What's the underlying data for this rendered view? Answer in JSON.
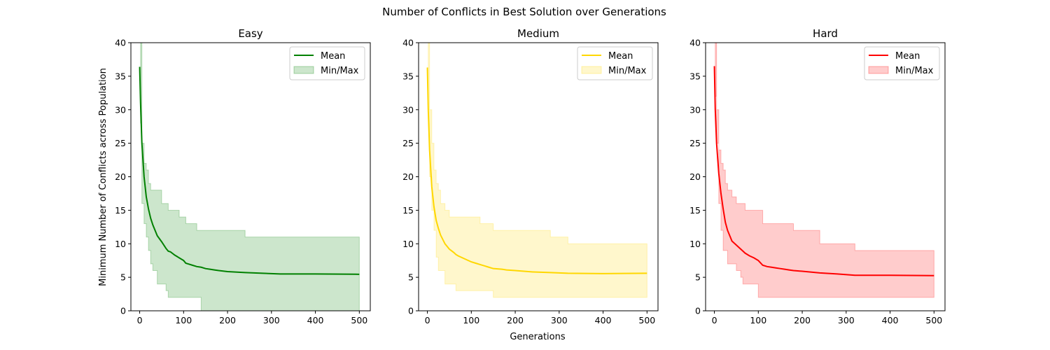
{
  "figure": {
    "suptitle": "Number of Conflicts in Best Solution over Generations",
    "xlabel": "Generations",
    "ylabel": "Minimum Number of Conflicts across Population"
  },
  "chart_data": [
    {
      "type": "line",
      "title": "Easy",
      "color": "#008000",
      "x": [
        0,
        2,
        5,
        10,
        15,
        20,
        25,
        30,
        40,
        50,
        60,
        65,
        70,
        80,
        90,
        100,
        105,
        110,
        120,
        130,
        140,
        150,
        160,
        170,
        180,
        200,
        240,
        280,
        320,
        400,
        500
      ],
      "series": [
        {
          "name": "Mean",
          "values": [
            36.4,
            31,
            25,
            20,
            17,
            15.2,
            13.8,
            12.8,
            11.2,
            10.3,
            9.3,
            8.9,
            8.8,
            8.3,
            7.9,
            7.5,
            7.1,
            7.0,
            6.8,
            6.6,
            6.5,
            6.3,
            6.2,
            6.1,
            6.0,
            5.85,
            5.7,
            5.6,
            5.5,
            5.5,
            5.45
          ]
        },
        {
          "name": "Min/Max",
          "min": [
            40,
            28,
            16,
            13,
            11,
            9,
            7,
            6,
            4,
            4,
            3,
            2,
            2,
            2,
            2,
            2,
            2,
            2,
            2,
            2,
            0,
            0,
            0,
            0,
            0,
            0,
            0,
            0,
            0,
            0,
            0
          ],
          "max": [
            40,
            40,
            25,
            22,
            21,
            19,
            18,
            18,
            18,
            16,
            16,
            15,
            15,
            15,
            14,
            14,
            13,
            13,
            13,
            12,
            12,
            12,
            12,
            12,
            12,
            12,
            11,
            11,
            11,
            11,
            11
          ]
        }
      ],
      "xlim": [
        -20,
        525
      ],
      "ylim": [
        0,
        40
      ],
      "xticks": [
        0,
        100,
        200,
        300,
        400,
        500
      ],
      "yticks": [
        0,
        5,
        10,
        15,
        20,
        25,
        30,
        35,
        40
      ],
      "legend": "top-right"
    },
    {
      "type": "line",
      "title": "Medium",
      "color": "#ffd700",
      "x": [
        0,
        2,
        5,
        10,
        15,
        20,
        25,
        30,
        40,
        50,
        60,
        65,
        70,
        80,
        90,
        100,
        110,
        120,
        130,
        140,
        150,
        160,
        170,
        180,
        200,
        240,
        280,
        320,
        400,
        500
      ],
      "series": [
        {
          "name": "Mean",
          "values": [
            36.3,
            30,
            24,
            18.5,
            15.5,
            13.5,
            12.3,
            11.3,
            10.0,
            9.2,
            8.7,
            8.4,
            8.2,
            7.9,
            7.6,
            7.3,
            7.1,
            6.9,
            6.7,
            6.5,
            6.3,
            6.25,
            6.2,
            6.1,
            6.0,
            5.8,
            5.7,
            5.6,
            5.55,
            5.6
          ]
        },
        {
          "name": "Min/Max",
          "min": [
            40,
            30,
            20,
            15,
            12,
            8,
            6,
            6,
            4,
            4,
            4,
            3,
            3,
            3,
            3,
            3,
            3,
            3,
            3,
            3,
            2,
            2,
            2,
            2,
            2,
            2,
            2,
            2,
            2,
            2
          ],
          "max": [
            40,
            40,
            30,
            25,
            21,
            19,
            18,
            16,
            15,
            14,
            14,
            14,
            14,
            14,
            14,
            14,
            14,
            13,
            13,
            13,
            12,
            12,
            12,
            12,
            12,
            12,
            11,
            10,
            10,
            10
          ]
        }
      ],
      "xlim": [
        -20,
        525
      ],
      "ylim": [
        0,
        40
      ],
      "xticks": [
        0,
        100,
        200,
        300,
        400,
        500
      ],
      "yticks": [
        0,
        5,
        10,
        15,
        20,
        25,
        30,
        35,
        40
      ],
      "legend": "top-right"
    },
    {
      "type": "line",
      "title": "Hard",
      "color": "#ff0000",
      "x": [
        0,
        2,
        5,
        10,
        15,
        20,
        25,
        30,
        40,
        50,
        60,
        65,
        70,
        80,
        90,
        100,
        110,
        120,
        130,
        140,
        150,
        160,
        170,
        180,
        200,
        240,
        280,
        320,
        400,
        500
      ],
      "series": [
        {
          "name": "Mean",
          "values": [
            36.5,
            30,
            25,
            20.5,
            17.5,
            15.2,
            13.2,
            12.0,
            10.4,
            9.8,
            9.2,
            8.9,
            8.6,
            8.2,
            7.9,
            7.5,
            6.8,
            6.6,
            6.5,
            6.4,
            6.3,
            6.2,
            6.1,
            6.0,
            5.9,
            5.65,
            5.5,
            5.3,
            5.3,
            5.25
          ]
        },
        {
          "name": "Min/Max",
          "min": [
            40,
            32,
            25,
            16,
            12,
            9,
            9,
            7,
            7,
            6,
            5,
            4,
            4,
            4,
            4,
            2,
            2,
            2,
            2,
            2,
            2,
            2,
            2,
            2,
            2,
            2,
            2,
            2,
            2,
            2
          ],
          "max": [
            40,
            40,
            30,
            24,
            22,
            21,
            19,
            18,
            17,
            16,
            16,
            16,
            15,
            15,
            15,
            15,
            13,
            13,
            13,
            13,
            13,
            13,
            13,
            12,
            12,
            10,
            10,
            9,
            9,
            9
          ]
        }
      ],
      "xlim": [
        -20,
        525
      ],
      "ylim": [
        0,
        40
      ],
      "xticks": [
        0,
        100,
        200,
        300,
        400,
        500
      ],
      "yticks": [
        0,
        5,
        10,
        15,
        20,
        25,
        30,
        35,
        40
      ],
      "legend": "top-right"
    }
  ]
}
